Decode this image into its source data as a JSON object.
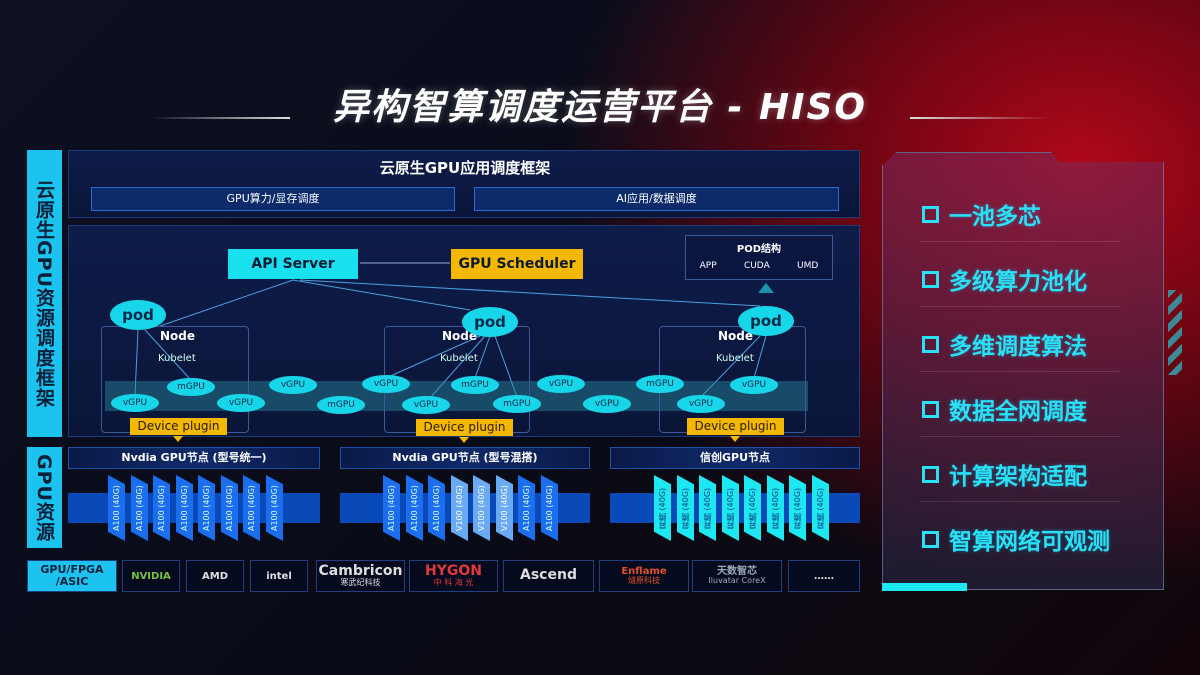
{
  "title": "异构智算调度运营平台 - HISO",
  "left_labels": {
    "framework": "云原生GPU资源调度框架",
    "resources": "GPU资源"
  },
  "top_panel": {
    "title": "云原生GPU应用调度框架",
    "items": [
      "GPU算力/显存调度",
      "AI应用/数据调度"
    ]
  },
  "scheduling": {
    "api_server": "API Server",
    "gpu_scheduler": "GPU Scheduler",
    "pod_structure": {
      "title": "POD结构",
      "items": [
        "APP",
        "CUDA",
        "UMD"
      ]
    },
    "pod_label": "pod",
    "node_label": "Node",
    "kubelet_label": "Kubelet",
    "device_plugin_label": "Device plugin",
    "units": [
      "vGPU",
      "mGPU",
      "vGPU",
      "vGPU",
      "mGPU",
      "vGPU",
      "vGPU",
      "mGPU",
      "mGPU",
      "vGPU",
      "vGPU",
      "mGPU",
      "vGPU",
      "vGPU"
    ]
  },
  "gpu_groups": [
    {
      "title": "Nvdia GPU节点 (型号统一)",
      "cards": [
        "A100 (40G)",
        "A100 (40G)",
        "A100 (40G)",
        "A100 (40G)",
        "A100 (40G)",
        "A100 (40G)",
        "A100 (40G)",
        "A100 (40G)"
      ]
    },
    {
      "title": "Nvdia GPU节点 (型号混搭)",
      "cards": [
        "A100 (40G)",
        "A100 (40G)",
        "A100 (40G)",
        "V100 (40G)",
        "V100 (40G)",
        "V100 (40G)",
        "A100 (40G)",
        "A100 (40G)"
      ]
    },
    {
      "title": "信创GPU节点",
      "cards": [
        "昇腾 (40G)",
        "昇腾 (40G)",
        "昇腾 (40G)",
        "昇腾 (40G)",
        "昇腾 (40G)",
        "昇腾 (40G)",
        "昇腾 (40G)",
        "昇腾 (40G)"
      ]
    }
  ],
  "vendors": {
    "label": "GPU/FPGA /ASIC",
    "items": [
      {
        "name": "NVIDIA",
        "sub": ""
      },
      {
        "name": "AMD",
        "sub": ""
      },
      {
        "name": "intel",
        "sub": ""
      },
      {
        "name": "Cambricon",
        "sub": "寒武纪科技"
      },
      {
        "name": "HYGON",
        "sub": "中 科 海 光"
      },
      {
        "name": "Ascend",
        "sub": ""
      },
      {
        "name": "Enflame",
        "sub": "燧原科技"
      },
      {
        "name": "天数智芯",
        "sub": "Iluvatar CoreX"
      },
      {
        "name": "……",
        "sub": ""
      }
    ]
  },
  "features": [
    "一池多芯",
    "多级算力池化",
    "多维调度算法",
    "数据全网调度",
    "计算架构适配",
    "智算网络可观测"
  ],
  "colors": {
    "cyan": "#1bc3ee",
    "orange": "#f5b800",
    "card_blue": "#1b6ef0",
    "card_cyan": "#1de8f2"
  }
}
